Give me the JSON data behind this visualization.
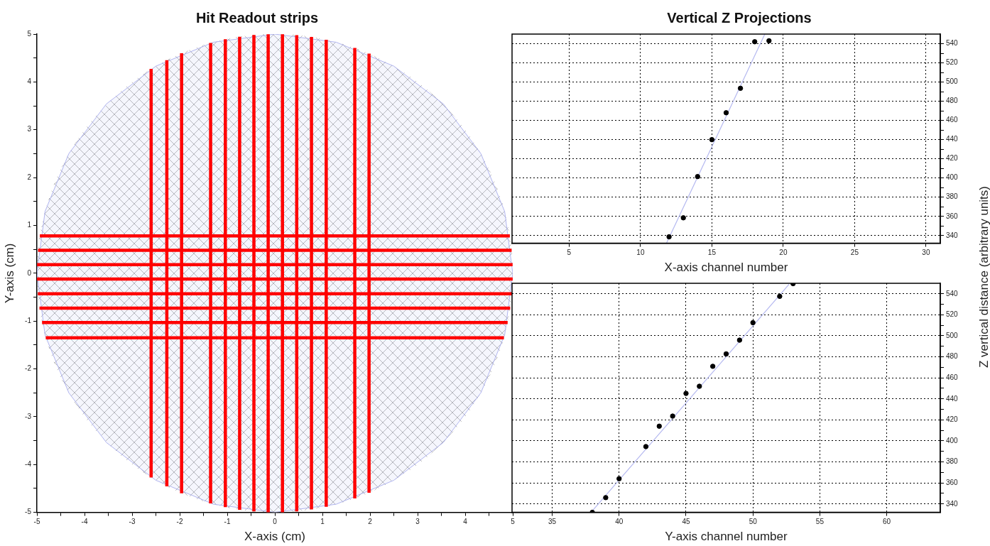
{
  "chart_data": [
    {
      "type": "scatter",
      "title": "Hit Readout strips",
      "xlabel": "X-axis (cm)",
      "ylabel": "Y-axis (cm)",
      "xlim": [
        -5,
        5
      ],
      "ylim": [
        -5,
        5
      ],
      "xticks": [
        -5,
        {
          "value": -4.5,
          "label": null
        },
        -4,
        {
          "value": -3.5,
          "label": null
        },
        -3,
        {
          "value": -2.5,
          "label": null
        },
        -2,
        {
          "value": -1.5,
          "label": null
        },
        -1,
        {
          "value": -0.5,
          "label": null
        },
        0,
        {
          "value": 0.5,
          "label": null
        },
        1,
        {
          "value": 1.5,
          "label": null
        },
        2,
        {
          "value": 2.5,
          "label": null
        },
        3,
        {
          "value": 3.5,
          "label": null
        },
        4,
        {
          "value": 4.5,
          "label": null
        },
        5
      ],
      "yticks": [
        -5,
        {
          "value": -4.5,
          "label": null
        },
        -4,
        {
          "value": -3.5,
          "label": null
        },
        -3,
        {
          "value": -2.5,
          "label": null
        },
        -2,
        {
          "value": -1.5,
          "label": null
        },
        -1,
        {
          "value": -0.5,
          "label": null
        },
        0,
        {
          "value": 0.5,
          "label": null
        },
        1,
        {
          "value": 1.5,
          "label": null
        },
        2,
        {
          "value": 2.5,
          "label": null
        },
        3,
        {
          "value": 3.5,
          "label": null
        },
        4,
        {
          "value": 4.5,
          "label": null
        },
        5
      ],
      "grid": false,
      "legend": false,
      "series": [
        {
          "type": "area",
          "color": "#b0b4ee",
          "x": [
            5,
            4.83,
            4.33,
            3.54,
            2.5,
            1.29,
            0,
            -1.29,
            -2.5,
            -3.54,
            -4.33,
            -4.83,
            -5,
            -4.83,
            -4.33,
            -3.54,
            -2.5,
            -1.29,
            0,
            1.29,
            2.5,
            3.54,
            4.33,
            4.83,
            5
          ],
          "values": [
            0,
            1.29,
            2.5,
            3.54,
            4.33,
            4.83,
            5,
            4.83,
            4.33,
            3.54,
            2.5,
            1.29,
            0,
            -1.29,
            -2.5,
            -3.54,
            -4.33,
            -4.83,
            -5,
            -4.83,
            -4.33,
            -3.54,
            -2.5,
            -1.29,
            0
          ]
        }
      ],
      "ref_lines": [
        {
          "axis": "x",
          "value": -2.6,
          "color": "#ff0000"
        },
        {
          "axis": "x",
          "value": -2.27,
          "color": "#ff0000"
        },
        {
          "axis": "x",
          "value": -1.96,
          "color": "#ff0000"
        },
        {
          "axis": "x",
          "value": -1.35,
          "color": "#ff0000"
        },
        {
          "axis": "x",
          "value": -1.04,
          "color": "#ff0000"
        },
        {
          "axis": "x",
          "value": -0.74,
          "color": "#ff0000"
        },
        {
          "axis": "x",
          "value": -0.44,
          "color": "#ff0000"
        },
        {
          "axis": "x",
          "value": -0.14,
          "color": "#ff0000"
        },
        {
          "axis": "x",
          "value": 0.16,
          "color": "#ff0000"
        },
        {
          "axis": "x",
          "value": 0.46,
          "color": "#ff0000"
        },
        {
          "axis": "x",
          "value": 0.77,
          "color": "#ff0000"
        },
        {
          "axis": "x",
          "value": 1.08,
          "color": "#ff0000"
        },
        {
          "axis": "x",
          "value": 1.68,
          "color": "#ff0000"
        },
        {
          "axis": "x",
          "value": 1.98,
          "color": "#ff0000"
        },
        {
          "axis": "y",
          "value": 0.78,
          "color": "#ff0000"
        },
        {
          "axis": "y",
          "value": 0.48,
          "color": "#ff0000"
        },
        {
          "axis": "y",
          "value": 0.18,
          "color": "#ff0000"
        },
        {
          "axis": "y",
          "value": -0.12,
          "color": "#ff0000"
        },
        {
          "axis": "y",
          "value": -0.43,
          "color": "#ff0000"
        },
        {
          "axis": "y",
          "value": -0.73,
          "color": "#ff0000"
        },
        {
          "axis": "y",
          "value": -1.03,
          "color": "#ff0000"
        },
        {
          "axis": "y",
          "value": -1.35,
          "color": "#ff0000"
        }
      ]
    },
    {
      "type": "scatter",
      "title": "Vertical Z Projections",
      "xlabel": "X-axis channel number",
      "ylabel": "Z vertical distance (arbitrary units)",
      "xlim": [
        1,
        31
      ],
      "ylim": [
        332,
        550
      ],
      "xticks": [
        5,
        10,
        15,
        20,
        25,
        30
      ],
      "yticks": [
        340,
        {
          "value": 350,
          "label": null
        },
        360,
        {
          "value": 370,
          "label": null
        },
        380,
        {
          "value": 390,
          "label": null
        },
        400,
        {
          "value": 410,
          "label": null
        },
        420,
        {
          "value": 430,
          "label": null
        },
        440,
        {
          "value": 450,
          "label": null
        },
        460,
        {
          "value": 470,
          "label": null
        },
        480,
        {
          "value": 490,
          "label": null
        },
        500,
        {
          "value": 510,
          "label": null
        },
        520,
        {
          "value": 530,
          "label": null
        },
        540
      ],
      "grid": true,
      "legend": false,
      "series": [
        {
          "type": "scatter",
          "marker": "circle",
          "color": "#000000",
          "x": [
            12,
            13,
            14,
            15,
            16,
            17,
            18,
            19
          ],
          "values": [
            338.7,
            358.5,
            401.5,
            440,
            468,
            493.5,
            542,
            543
          ]
        },
        {
          "type": "line",
          "marker": "none",
          "color": "#b4b8f0",
          "x": [
            11.82,
            18.71
          ],
          "values": [
            332,
            550
          ]
        }
      ]
    },
    {
      "type": "scatter",
      "xlabel": "Y-axis channel number",
      "xlim": [
        32,
        64
      ],
      "ylim": [
        332,
        550
      ],
      "xticks": [
        35,
        40,
        45,
        50,
        55,
        60
      ],
      "yticks": [
        340,
        {
          "value": 350,
          "label": null
        },
        360,
        {
          "value": 370,
          "label": null
        },
        380,
        {
          "value": 390,
          "label": null
        },
        400,
        {
          "value": 410,
          "label": null
        },
        420,
        {
          "value": 430,
          "label": null
        },
        440,
        {
          "value": 450,
          "label": null
        },
        460,
        {
          "value": 470,
          "label": null
        },
        480,
        {
          "value": 490,
          "label": null
        },
        500,
        {
          "value": 510,
          "label": null
        },
        520,
        {
          "value": 530,
          "label": null
        },
        540
      ],
      "grid": true,
      "legend": false,
      "series": [
        {
          "type": "scatter",
          "marker": "circle",
          "color": "#000000",
          "x": [
            38,
            39,
            40,
            42,
            43,
            44,
            45,
            46,
            47,
            48,
            49,
            50,
            52,
            53
          ],
          "values": [
            332,
            346,
            364,
            394.6,
            414,
            423.6,
            445.2,
            452,
            471,
            482.8,
            495.9,
            512.5,
            537.6,
            549.7
          ]
        },
        {
          "type": "line",
          "marker": "none",
          "color": "#b4b8f0",
          "x": [
            37.9,
            52.7
          ],
          "values": [
            332,
            549
          ]
        }
      ]
    }
  ]
}
